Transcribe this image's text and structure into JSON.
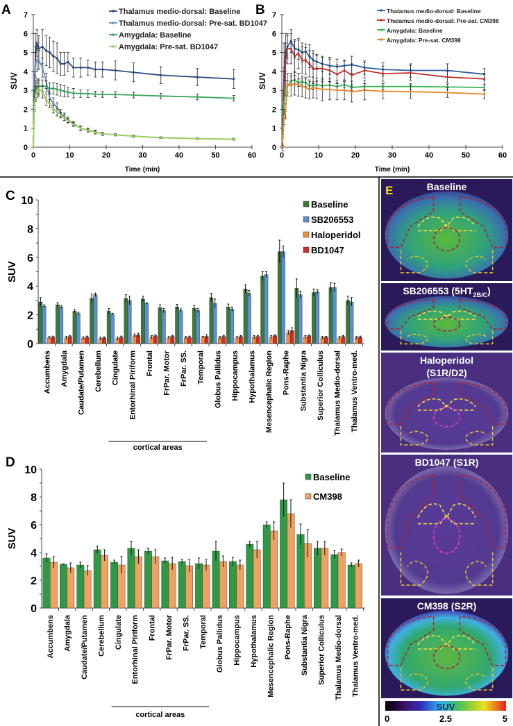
{
  "panel_labels": {
    "a": "A",
    "b": "B",
    "c": "C",
    "d": "D",
    "e": "E"
  },
  "cortical_label": "cortical areas",
  "chart_data": [
    {
      "id": "A",
      "type": "line",
      "xlabel": "Time (min)",
      "ylabel": "SUV",
      "xlim": [
        0,
        60
      ],
      "ylim": [
        0,
        7
      ],
      "xticks": [
        0,
        10,
        20,
        30,
        40,
        50,
        60
      ],
      "yticks": [
        0,
        1,
        2,
        3,
        4,
        5,
        6,
        7
      ],
      "grid": false,
      "legend": "top",
      "x": [
        0,
        0.3,
        0.6,
        1,
        1.5,
        2.5,
        3.5,
        4.5,
        5.5,
        6.5,
        7.5,
        8.5,
        9.5,
        11,
        13,
        15,
        17,
        19,
        22.5,
        27.5,
        35,
        45,
        55
      ],
      "series": [
        {
          "name": "Thalamus medio-dorsal: Baseline",
          "color": "#2c4a7c",
          "y": [
            0,
            3,
            5,
            5.5,
            5.2,
            5.3,
            5.1,
            5.0,
            4.8,
            4.7,
            4.4,
            4.4,
            4.5,
            4.2,
            4.2,
            4.2,
            4.1,
            4.1,
            4.05,
            3.95,
            3.8,
            3.7,
            3.6
          ],
          "err": [
            0,
            1,
            1,
            0.7,
            0.7,
            0.9,
            0.8,
            0.8,
            0.8,
            0.8,
            0.6,
            0.6,
            0.5,
            0.5,
            0.5,
            0.4,
            0.4,
            0.4,
            0.5,
            0.5,
            0.45,
            0.45,
            0.5
          ]
        },
        {
          "name": "Thalamus medio-dorsal: Pre-sat. BD1047",
          "color": "#6a8fc0",
          "y": [
            0,
            3,
            4.5,
            4.6,
            4.6,
            4.2,
            3.5,
            2.6,
            2.3,
            2.1,
            1.8,
            1.6,
            1.45,
            1.25,
            1.0,
            0.9,
            0.8,
            0.7,
            0.65,
            0.58,
            0.5,
            0.45,
            0.42
          ],
          "err": [
            0,
            0.8,
            0.8,
            0.6,
            0.5,
            0.5,
            0.4,
            0.3,
            0.3,
            0.25,
            0.2,
            0.2,
            0.15,
            0.12,
            0.12,
            0.1,
            0.1,
            0.08,
            0.06,
            0.06,
            0.05,
            0.05,
            0.05
          ]
        },
        {
          "name": "Amygdala: Baseline",
          "color": "#3aa55a",
          "y": [
            0,
            2.5,
            3.0,
            3.2,
            3.2,
            3.25,
            3.2,
            3.1,
            3.1,
            3.05,
            3.0,
            2.95,
            2.9,
            2.85,
            2.83,
            2.82,
            2.8,
            2.78,
            2.78,
            2.75,
            2.7,
            2.65,
            2.58
          ],
          "err": [
            0,
            0.5,
            0.5,
            0.4,
            0.4,
            0.3,
            0.3,
            0.3,
            0.3,
            0.3,
            0.3,
            0.3,
            0.25,
            0.25,
            0.2,
            0.2,
            0.15,
            0.15,
            0.15,
            0.15,
            0.15,
            0.15,
            0.15
          ]
        },
        {
          "name": "Amygdala: Pre-sat. BD1047",
          "color": "#9ccf5a",
          "y": [
            0,
            2.3,
            2.8,
            3.0,
            3.1,
            2.9,
            2.5,
            2.3,
            2.0,
            1.85,
            1.7,
            1.55,
            1.4,
            1.2,
            1.0,
            0.88,
            0.78,
            0.7,
            0.65,
            0.58,
            0.5,
            0.45,
            0.42
          ],
          "err": [
            0,
            0.4,
            0.4,
            0.4,
            0.4,
            0.3,
            0.3,
            0.2,
            0.2,
            0.2,
            0.15,
            0.15,
            0.12,
            0.1,
            0.1,
            0.08,
            0.08,
            0.06,
            0.05,
            0.05,
            0.04,
            0.04,
            0.04
          ]
        }
      ]
    },
    {
      "id": "B",
      "type": "line",
      "xlabel": "Time (min)",
      "ylabel": "SUV",
      "xlim": [
        0,
        60
      ],
      "ylim": [
        0,
        7
      ],
      "xticks": [
        0,
        10,
        20,
        30,
        40,
        50,
        60
      ],
      "yticks": [
        0,
        1,
        2,
        3,
        4,
        5,
        6,
        7
      ],
      "grid": false,
      "legend": "top-right",
      "x": [
        0,
        0.3,
        0.6,
        1,
        1.5,
        2.5,
        3.5,
        4.5,
        5.5,
        6.5,
        7.5,
        8.5,
        9.5,
        11,
        13,
        15,
        17,
        19,
        22.5,
        27.5,
        35,
        45,
        55
      ],
      "series": [
        {
          "name": "Thalamus medio-dorsal: Baseline",
          "color": "#2e5aa0",
          "y": [
            0,
            1.5,
            4,
            5,
            5.3,
            5.6,
            5.2,
            5.15,
            5.0,
            5.05,
            4.8,
            4.6,
            4.5,
            4.4,
            4.3,
            4.25,
            4.3,
            4.35,
            4.2,
            4.1,
            4.05,
            4.05,
            3.85
          ],
          "err": [
            0,
            1.5,
            1.5,
            1.0,
            0.6,
            0.6,
            0.5,
            0.5,
            0.5,
            0.4,
            0.6,
            0.5,
            0.4,
            0.4,
            0.45,
            0.4,
            0.3,
            0.45,
            0.35,
            0.35,
            0.35,
            0.35,
            0.3
          ]
        },
        {
          "name": "Thalamus medio-dorsal: Pre-sat. CM398",
          "color": "#c0302a",
          "y": [
            0,
            1,
            3,
            4.5,
            5.2,
            5.2,
            4.8,
            4.95,
            4.6,
            4.55,
            4.4,
            4.15,
            4.15,
            4.15,
            4.05,
            3.85,
            4.05,
            3.8,
            4.05,
            3.88,
            3.92,
            3.7,
            3.6
          ],
          "err": [
            0,
            1.2,
            1.2,
            1,
            0.8,
            0.8,
            0.8,
            0.8,
            0.7,
            0.7,
            0.7,
            0.8,
            0.7,
            0.6,
            0.6,
            0.5,
            0.5,
            0.6,
            0.4,
            0.4,
            0.4,
            0.3,
            0.3
          ]
        },
        {
          "name": "Amygdala: Baseline",
          "color": "#3db55a",
          "y": [
            0,
            1,
            2.3,
            3.1,
            3.2,
            3.5,
            3.55,
            3.4,
            3.45,
            3.4,
            3.25,
            3.25,
            3.3,
            3.25,
            3.27,
            3.2,
            3.3,
            3.15,
            3.2,
            3.2,
            3.2,
            3.18,
            3.15
          ],
          "err": [
            0,
            0.5,
            0.5,
            0.4,
            0.3,
            0.25,
            0.25,
            0.2,
            0.2,
            0.2,
            0.2,
            0.2,
            0.2,
            0.2,
            0.2,
            0.2,
            0.15,
            0.15,
            0.15,
            0.15,
            0.15,
            0.15,
            0.15
          ]
        },
        {
          "name": "Amygdala: Pre-sat. CM398",
          "color": "#e8862a",
          "y": [
            0,
            0.5,
            1.6,
            1.9,
            3.3,
            3.3,
            3.35,
            3.3,
            3.2,
            3.15,
            3.05,
            3.15,
            3.1,
            3.05,
            3.05,
            3.0,
            3.0,
            2.93,
            3.0,
            2.95,
            2.93,
            2.88,
            2.8
          ],
          "err": [
            0,
            0.4,
            0.4,
            0.4,
            0.6,
            0.6,
            0.6,
            0.6,
            0.55,
            0.55,
            0.5,
            0.55,
            0.55,
            0.6,
            0.55,
            0.5,
            0.5,
            0.55,
            0.5,
            0.4,
            0.35,
            0.25,
            0.25
          ]
        }
      ]
    },
    {
      "id": "C",
      "type": "bar",
      "ylabel": "SUV",
      "ylim": [
        0,
        10
      ],
      "yticks": [
        0,
        2,
        4,
        6,
        8,
        10
      ],
      "grid": false,
      "legend": "top-right",
      "categories": [
        "Accumbens",
        "Amygdala",
        "Caudate/Putamen",
        "Cerebellum",
        "Cingulate",
        "Entorhinal Piriform",
        "Frontal",
        "FrPar. Motor",
        "FrPar. SS.",
        "Temporal",
        "Globus Pallidus",
        "Hippocampus",
        "Hypothalamus",
        "Mesencephalic Region",
        "Pons-Raphe",
        "Substantia Nigra",
        "Superior Colliculus",
        "Thalamus Medio-dorsal",
        "Thalamus Ventro-med."
      ],
      "series": [
        {
          "name": "Baseline",
          "color": "#3a7a3a",
          "values": [
            2.9,
            2.7,
            2.25,
            3.15,
            2.25,
            3.15,
            3.1,
            2.5,
            2.55,
            2.45,
            3.2,
            2.55,
            3.8,
            4.7,
            6.4,
            3.85,
            3.55,
            3.9,
            3.0
          ],
          "err": [
            0.3,
            0.15,
            0.12,
            0.3,
            0.18,
            0.25,
            0.2,
            0.2,
            0.18,
            0.2,
            0.3,
            0.2,
            0.3,
            0.3,
            0.8,
            0.65,
            0.25,
            0.35,
            0.3
          ]
        },
        {
          "name": "SB206553",
          "color": "#5b8fd0",
          "values": [
            2.6,
            2.55,
            2.1,
            3.4,
            2.05,
            3.0,
            2.8,
            2.3,
            2.3,
            2.3,
            2.8,
            2.4,
            3.5,
            4.8,
            6.4,
            3.4,
            3.6,
            3.9,
            2.9
          ],
          "err": [
            0.1,
            0.1,
            0.08,
            0.12,
            0.06,
            0.3,
            0.04,
            0.15,
            0.12,
            0.15,
            0.3,
            0.15,
            0.2,
            0.2,
            0.4,
            0.25,
            0.15,
            0.3,
            0.3
          ]
        },
        {
          "name": "Haloperidol",
          "color": "#f0903c",
          "values": [
            0.4,
            0.4,
            0.38,
            0.35,
            0.35,
            0.55,
            0.45,
            0.4,
            0.4,
            0.45,
            0.4,
            0.4,
            0.45,
            0.45,
            0.75,
            0.45,
            0.4,
            0.4,
            0.4
          ],
          "err": [
            0.1,
            0.1,
            0.1,
            0.1,
            0.1,
            0.12,
            0.1,
            0.1,
            0.1,
            0.06,
            0.1,
            0.1,
            0.1,
            0.1,
            0.15,
            0.1,
            0.1,
            0.1,
            0.1
          ]
        },
        {
          "name": "BD1047",
          "color": "#d02a2a",
          "values": [
            0.45,
            0.5,
            0.45,
            0.4,
            0.45,
            0.6,
            0.55,
            0.5,
            0.45,
            0.5,
            0.5,
            0.5,
            0.5,
            0.55,
            0.9,
            0.55,
            0.45,
            0.5,
            0.45
          ],
          "err": [
            0.07,
            0.07,
            0.07,
            0.07,
            0.07,
            0.12,
            0.07,
            0.07,
            0.07,
            0.12,
            0.07,
            0.07,
            0.07,
            0.07,
            0.2,
            0.05,
            0.05,
            0.07,
            0.07
          ]
        }
      ]
    },
    {
      "id": "D",
      "type": "bar",
      "ylabel": "SUV",
      "ylim": [
        0,
        10
      ],
      "yticks": [
        0,
        2,
        4,
        6,
        8,
        10
      ],
      "grid": false,
      "legend": "top-right",
      "categories": [
        "Accumbens",
        "Amygdala",
        "Caudate/Putamen",
        "Cerebellum",
        "Cingulate",
        "Entorhinal Piriform",
        "Frontal",
        "FrPar. Motor",
        "FrPar. SS.",
        "Temporal",
        "Globus Pallidus",
        "Hippocampus",
        "Hypothalamus",
        "Mesencephalic Region",
        "Pons-Raphe",
        "Substantia Nigra",
        "Superior Colliculus",
        "Thalamus Medio-dorsal",
        "Thalamus Ventro-med."
      ],
      "series": [
        {
          "name": "Baseline",
          "color": "#2e9a46",
          "values": [
            3.6,
            3.15,
            3.1,
            4.2,
            3.3,
            4.3,
            4.1,
            3.4,
            3.35,
            3.2,
            4.1,
            3.35,
            4.6,
            6.0,
            7.8,
            5.3,
            4.3,
            3.85,
            3.1
          ],
          "err": [
            0.3,
            0.03,
            0.2,
            0.25,
            0.15,
            0.5,
            0.2,
            0.2,
            0.15,
            0.4,
            0.7,
            0.3,
            0.2,
            0.2,
            1.2,
            0.75,
            0.5,
            0.3,
            0.15
          ]
        },
        {
          "name": "CM398",
          "color": "#f0a060",
          "values": [
            3.3,
            2.9,
            2.7,
            3.8,
            3.1,
            3.7,
            3.7,
            3.2,
            3.05,
            3.1,
            3.35,
            3.1,
            4.2,
            5.55,
            6.8,
            4.65,
            4.3,
            4.0,
            3.2
          ],
          "err": [
            0.4,
            0.35,
            0.35,
            0.4,
            0.6,
            0.5,
            0.5,
            0.45,
            0.45,
            0.4,
            0.4,
            0.35,
            0.6,
            0.65,
            1.0,
            1.0,
            0.5,
            0.25,
            0.25
          ]
        }
      ]
    }
  ],
  "images": {
    "panels": [
      {
        "title": "Baseline",
        "tint": "green"
      },
      {
        "title": "SB206553 (5HT",
        "subscript": "2B/C",
        "title_end": ")",
        "tint": "green"
      },
      {
        "title": "Haloperidol",
        "title_line2": "(S1R/D2)",
        "tint": "purple"
      },
      {
        "title": "BD1047 (S1R)",
        "tint": "purple"
      },
      {
        "title": "CM398 (S2R)",
        "tint": "green-bright"
      }
    ],
    "colorbar": {
      "label": "SUV",
      "ticks": [
        "0",
        "2.5",
        "5"
      ],
      "range": [
        0,
        5
      ]
    }
  }
}
